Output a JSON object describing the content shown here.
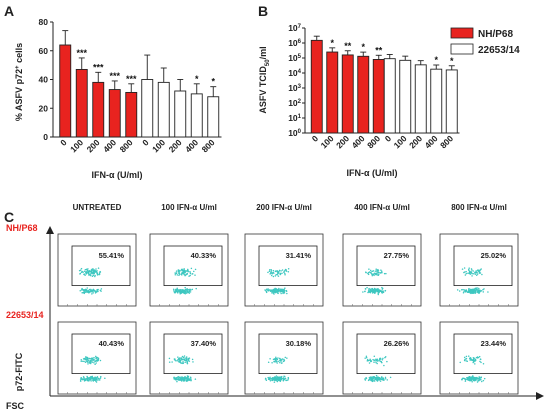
{
  "colors": {
    "red": "#e8231f",
    "white_bar": "#ffffff",
    "text": "#222222",
    "dot": "#3ec7c0",
    "row_label_red": "#e8231f"
  },
  "panels": {
    "a": "A",
    "b": "B",
    "c": "C"
  },
  "chart_data": [
    {
      "type": "bar",
      "panel": "A",
      "title": "",
      "xlabel": "IFN-α (U/ml)",
      "ylabel": "% ASFV p72+ cells",
      "ylim": [
        0,
        80
      ],
      "yticks": [
        0,
        20,
        40,
        60,
        80
      ],
      "categories": [
        "0",
        "100",
        "200",
        "400",
        "800"
      ],
      "series": [
        {
          "name": "NH/P68",
          "color": "#e8231f",
          "values": [
            64,
            47,
            38,
            33,
            31
          ],
          "errors": [
            10,
            8,
            7,
            6,
            6
          ],
          "stars": [
            "",
            "***",
            "***",
            "***",
            "***"
          ]
        },
        {
          "name": "22653/14",
          "color": "#ffffff",
          "values": [
            40,
            38,
            32,
            30,
            28
          ],
          "errors": [
            17,
            10,
            8,
            7,
            7
          ],
          "stars": [
            "",
            "",
            "",
            "*",
            "*"
          ]
        }
      ]
    },
    {
      "type": "bar",
      "panel": "B",
      "title": "",
      "xlabel": "IFN-α (U/ml)",
      "ylabel": "ASFV TCID50/ml",
      "yscale": "log",
      "ylim": [
        1,
        10000000
      ],
      "yticks": [
        "10^0",
        "10^1",
        "10^2",
        "10^3",
        "10^4",
        "10^5",
        "10^6",
        "10^7"
      ],
      "categories": [
        "0",
        "100",
        "200",
        "400",
        "800"
      ],
      "series": [
        {
          "name": "NH/P68",
          "color": "#e8231f",
          "values": [
            1500000,
            250000,
            160000,
            130000,
            80000
          ],
          "stars": [
            "",
            "*",
            "**",
            "*",
            "**"
          ]
        },
        {
          "name": "22653/14",
          "color": "#ffffff",
          "values": [
            90000,
            70000,
            35000,
            18000,
            16000
          ],
          "stars": [
            "",
            "",
            "",
            "*",
            "*"
          ]
        }
      ]
    }
  ],
  "legend": [
    {
      "label": "NH/P68",
      "color": "#e8231f"
    },
    {
      "label": "22653/14",
      "color": "#ffffff"
    }
  ],
  "flow": {
    "conditions": [
      "UNTREATED",
      "100 IFN-α U/ml",
      "200 IFN-α U/ml",
      "400 IFN-α U/ml",
      "800 IFN-α U/ml"
    ],
    "rows": [
      {
        "label": "NH/P68",
        "percents": [
          "55.41%",
          "40.33%",
          "31.41%",
          "27.75%",
          "25.02%"
        ]
      },
      {
        "label": "22653/14",
        "percents": [
          "40.43%",
          "37.40%",
          "30.18%",
          "26.26%",
          "23.44%"
        ]
      }
    ],
    "y_axis": "p72-FITC",
    "x_axis": "FSC"
  }
}
